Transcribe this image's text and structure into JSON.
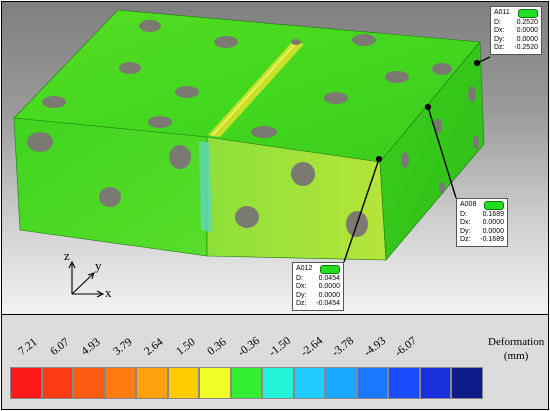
{
  "annotations": [
    {
      "id": "A011",
      "D": "0.2520",
      "Dx": "0.0000",
      "Dy": "0.0000",
      "Dz": "-0.2520"
    },
    {
      "id": "A008",
      "D": "0.1689",
      "Dx": "0.0000",
      "Dy": "0.0000",
      "Dz": "-0.1689"
    },
    {
      "id": "A012",
      "D": "0.0454",
      "Dx": "0.0000",
      "Dy": "0.0000",
      "Dz": "-0.0454"
    }
  ],
  "field_labels": {
    "D": "D:",
    "Dx": "Dx:",
    "Dy": "Dy:",
    "Dz": "Dz:"
  },
  "axes": {
    "z": "z",
    "y": "y",
    "x": "x"
  },
  "legend": {
    "title": "Deformation",
    "unit": "(mm)",
    "ticks": [
      "7.21",
      "6.07",
      "4.93",
      "3.79",
      "2.64",
      "1.50",
      "0.36",
      "-0.36",
      "-1.50",
      "-2.64",
      "-3.78",
      "-4.93",
      "-6.07"
    ],
    "colors": [
      "#ff1a1a",
      "#ff3b14",
      "#ff5a12",
      "#ff7a10",
      "#ffa10e",
      "#ffcc00",
      "#f2ff26",
      "#33ee33",
      "#22f2d8",
      "#22ccff",
      "#1aa8ff",
      "#1a78ff",
      "#1a4cff",
      "#1a30dd",
      "#0d1a88"
    ]
  }
}
